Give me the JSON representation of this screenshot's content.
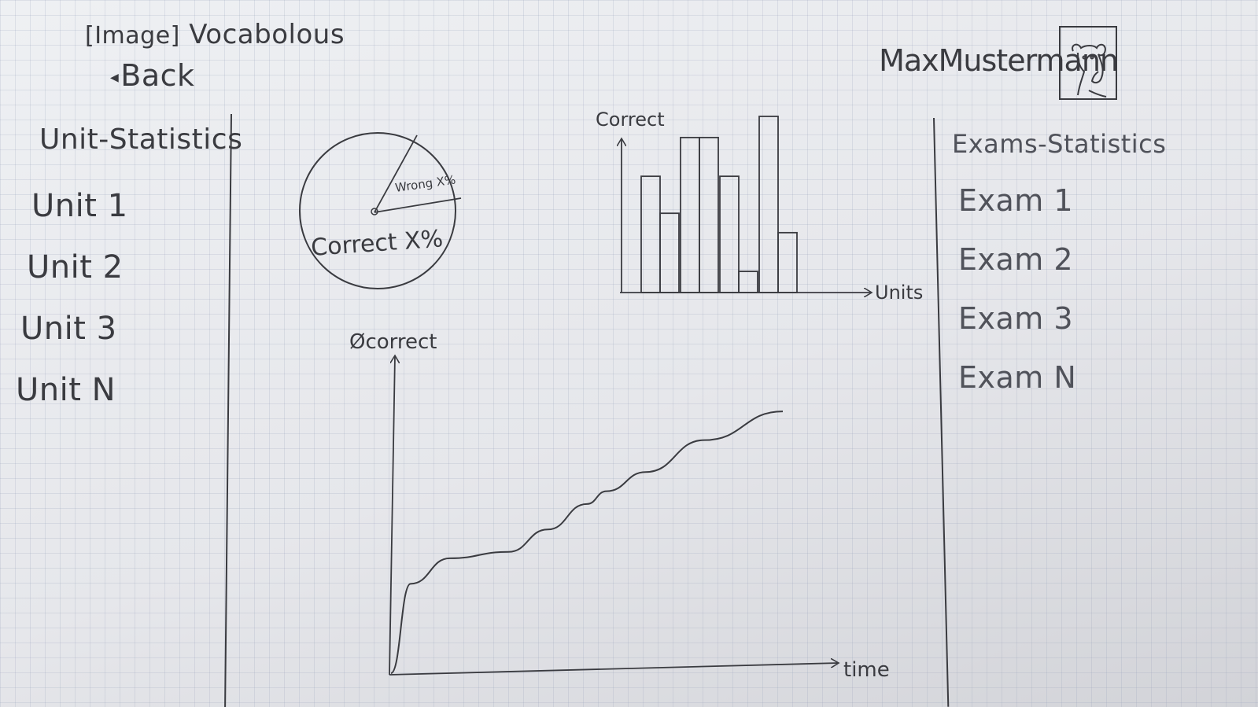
{
  "header": {
    "image_placeholder": "[Image]",
    "app_name": "Vocabolous",
    "back_label": "Back"
  },
  "user": {
    "name": "MaxMustermann"
  },
  "unit_statistics": {
    "heading": "Unit-Statistics",
    "items": [
      "Unit 1",
      "Unit 2",
      "Unit 3",
      "Unit N"
    ]
  },
  "exam_statistics": {
    "heading": "Exams-Statistics",
    "items": [
      "Exam 1",
      "Exam 2",
      "Exam 3",
      "Exam N"
    ]
  },
  "chart_data": [
    {
      "type": "pie",
      "labels": [
        "Wrong",
        "Correct"
      ],
      "value_labels": [
        "Wrong X%",
        "Correct X%"
      ],
      "values": [
        0.18,
        0.82
      ]
    },
    {
      "type": "bar",
      "ylabel": "Correct",
      "xlabel": "Units",
      "bars": [
        {
          "total": 0.66,
          "inner": 0.45
        },
        {
          "total": 0.88,
          "inner": null
        },
        {
          "total": 0.66,
          "inner": 0.12
        },
        {
          "total": 1.0,
          "inner": 0.34
        }
      ]
    },
    {
      "type": "line",
      "ylabel": "Øcorrect",
      "xlabel": "time",
      "x": [
        0,
        0.05,
        0.15,
        0.3,
        0.4,
        0.5,
        0.55,
        0.65,
        0.8,
        1.0
      ],
      "y": [
        0,
        0.28,
        0.36,
        0.38,
        0.45,
        0.53,
        0.57,
        0.63,
        0.73,
        0.82
      ]
    }
  ]
}
